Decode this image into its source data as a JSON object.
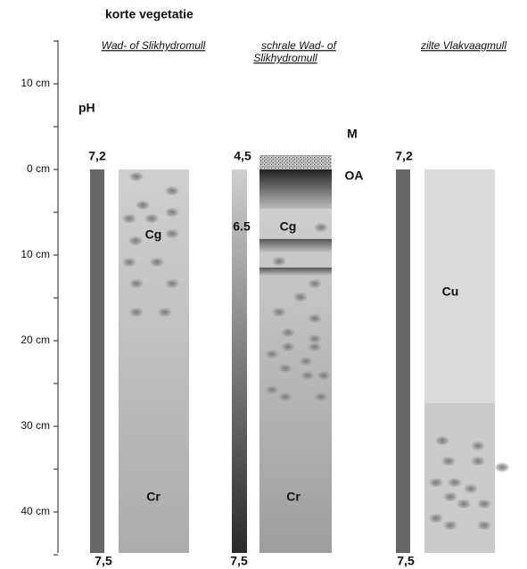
{
  "title": "korte vegetatie",
  "depth_axis": {
    "labels": [
      "10 cm",
      "0 cm",
      "10 cm",
      "20 cm",
      "30 cm",
      "40 cm"
    ]
  },
  "ph_label": "pH",
  "profiles": [
    {
      "name_lines": [
        "Wad- of Slikhydromull"
      ],
      "ph_top": "7,2",
      "ph_bottom": "7,5",
      "horizons": [
        "Cg",
        "Cr"
      ]
    },
    {
      "name_lines": [
        "schrale Wad- of",
        "Slikhydromull"
      ],
      "ph_top": "4,5",
      "ph_mid": "6.5",
      "ph_bottom": "7,5",
      "horizons": [
        "M",
        "OA",
        "Cg",
        "Cr"
      ]
    },
    {
      "name_lines": [
        "zilte Vlakvaagmull"
      ],
      "ph_top": "7,2",
      "ph_bottom": "7,5",
      "horizons": [
        "Cu"
      ]
    }
  ]
}
